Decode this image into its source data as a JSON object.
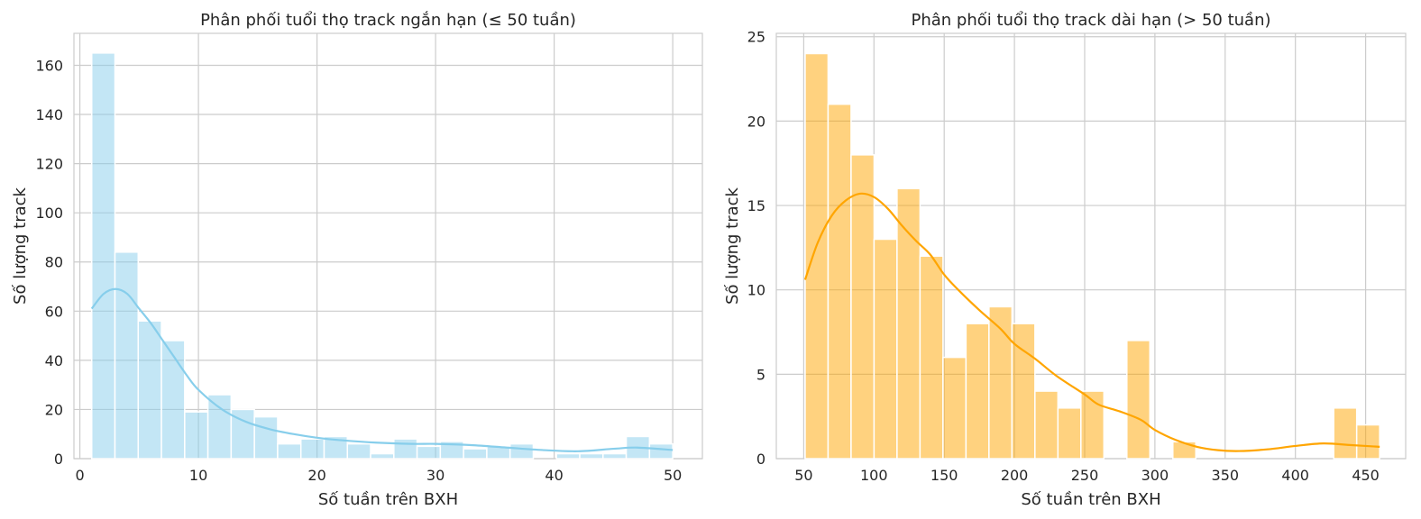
{
  "chart_data": [
    {
      "type": "bar",
      "title": "Phân phối tuổi thọ track ngắn hạn (≤ 50 tuần)",
      "xlabel": "Số tuần trên BXH",
      "ylabel": "Số lượng track",
      "xlim": [
        -0.5,
        52.5
      ],
      "ylim": [
        0,
        173
      ],
      "xticks": [
        0,
        10,
        20,
        30,
        40,
        50
      ],
      "yticks": [
        0,
        20,
        40,
        60,
        80,
        100,
        120,
        140,
        160
      ],
      "bar_color": "#87CEEB",
      "line_color": "#87CEEB",
      "bin_start": 1,
      "bin_width": 1.96,
      "values": [
        165,
        84,
        56,
        48,
        19,
        26,
        20,
        17,
        6,
        8,
        9,
        6,
        2,
        8,
        5,
        7,
        4,
        5,
        6,
        0,
        2,
        2,
        2,
        9,
        6
      ],
      "kde": {
        "x": [
          1,
          2,
          3,
          4,
          5,
          6,
          7,
          8,
          9,
          10,
          12,
          14,
          16,
          18,
          20,
          22,
          25,
          28,
          30,
          33,
          36,
          39,
          42,
          45,
          47,
          50
        ],
        "y": [
          61,
          67,
          69,
          67,
          61,
          55,
          48,
          41,
          34,
          28,
          20,
          15,
          12,
          10,
          8.5,
          7.5,
          6.5,
          6,
          6,
          5.5,
          4.5,
          3.5,
          3,
          4,
          4.5,
          3.5
        ]
      },
      "grid": true
    },
    {
      "type": "bar",
      "title": "Phân phối tuổi thọ track dài hạn (> 50 tuần)",
      "xlabel": "Số tuần trên BXH",
      "ylabel": "Số lượng track",
      "xlim": [
        30.5,
        478.5
      ],
      "ylim": [
        0,
        25.2
      ],
      "xticks": [
        50,
        100,
        150,
        200,
        250,
        300,
        350,
        400,
        450
      ],
      "yticks": [
        0,
        5,
        10,
        15,
        20,
        25
      ],
      "bar_color": "#FFA500",
      "line_color": "#FFA500",
      "bin_start": 51,
      "bin_width": 16.36,
      "values": [
        24,
        21,
        18,
        13,
        16,
        12,
        6,
        8,
        9,
        8,
        4,
        3,
        4,
        0,
        7,
        0,
        1,
        0,
        0,
        0,
        0,
        0,
        0,
        3,
        2
      ],
      "kde": {
        "x": [
          51,
          60,
          70,
          80,
          90,
          100,
          110,
          120,
          130,
          140,
          150,
          160,
          175,
          190,
          200,
          215,
          230,
          250,
          260,
          275,
          290,
          300,
          315,
          330,
          345,
          360,
          380,
          400,
          420,
          440,
          460
        ],
        "y": [
          10.6,
          12.8,
          14.4,
          15.3,
          15.7,
          15.5,
          14.8,
          13.8,
          12.9,
          12.1,
          10.9,
          10.0,
          8.8,
          7.7,
          6.8,
          5.9,
          4.9,
          3.8,
          3.2,
          2.8,
          2.3,
          1.7,
          1.1,
          0.7,
          0.5,
          0.45,
          0.55,
          0.75,
          0.9,
          0.8,
          0.7
        ]
      },
      "grid": true
    }
  ]
}
